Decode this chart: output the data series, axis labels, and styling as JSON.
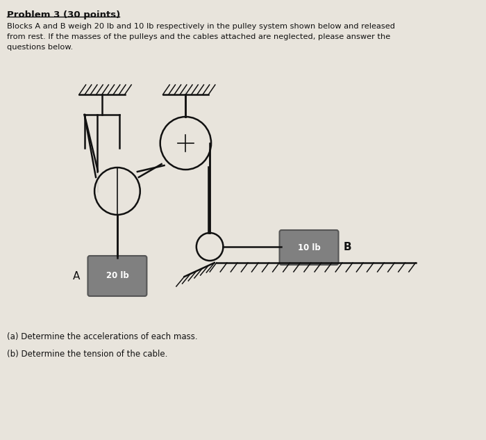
{
  "title": "Problem 3 (30 points)",
  "desc1": "Blocks A and B weigh 20 lb and 10 lb respectively in the pulley system shown below and released",
  "desc2": "from rest. If the masses of the pulleys and the cables attached are neglected, please answer the",
  "desc3": "questions below.",
  "qa": "(a) Determine the accelerations of each mass.",
  "qb": "(b) Determine the tension of the cable.",
  "bg_color": "#e8e4dc",
  "block_color": "#808080",
  "text_color": "#111111"
}
